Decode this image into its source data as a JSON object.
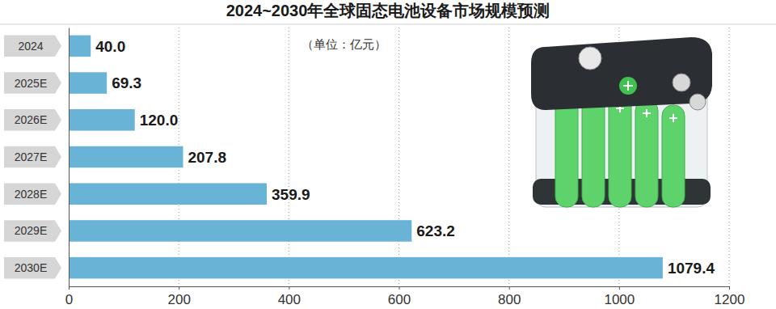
{
  "chart_data": {
    "type": "bar",
    "orientation": "horizontal",
    "title": "2024~2030年全球固态电池设备市场规模预测",
    "subtitle": "（单位：亿元）",
    "categories": [
      "2024",
      "2025E",
      "2026E",
      "2027E",
      "2028E",
      "2029E",
      "2030E"
    ],
    "values": [
      40.0,
      69.3,
      120.0,
      207.8,
      359.9,
      623.2,
      1079.4
    ],
    "value_labels": [
      "40.0",
      "69.3",
      "120.0",
      "207.8",
      "359.9",
      "623.2",
      "1079.4"
    ],
    "color": "#69b3d7",
    "xlim": [
      0,
      1200
    ],
    "xticks": [
      0,
      200,
      400,
      600,
      800,
      1000,
      1200
    ],
    "grid": true,
    "data_labels": true
  }
}
